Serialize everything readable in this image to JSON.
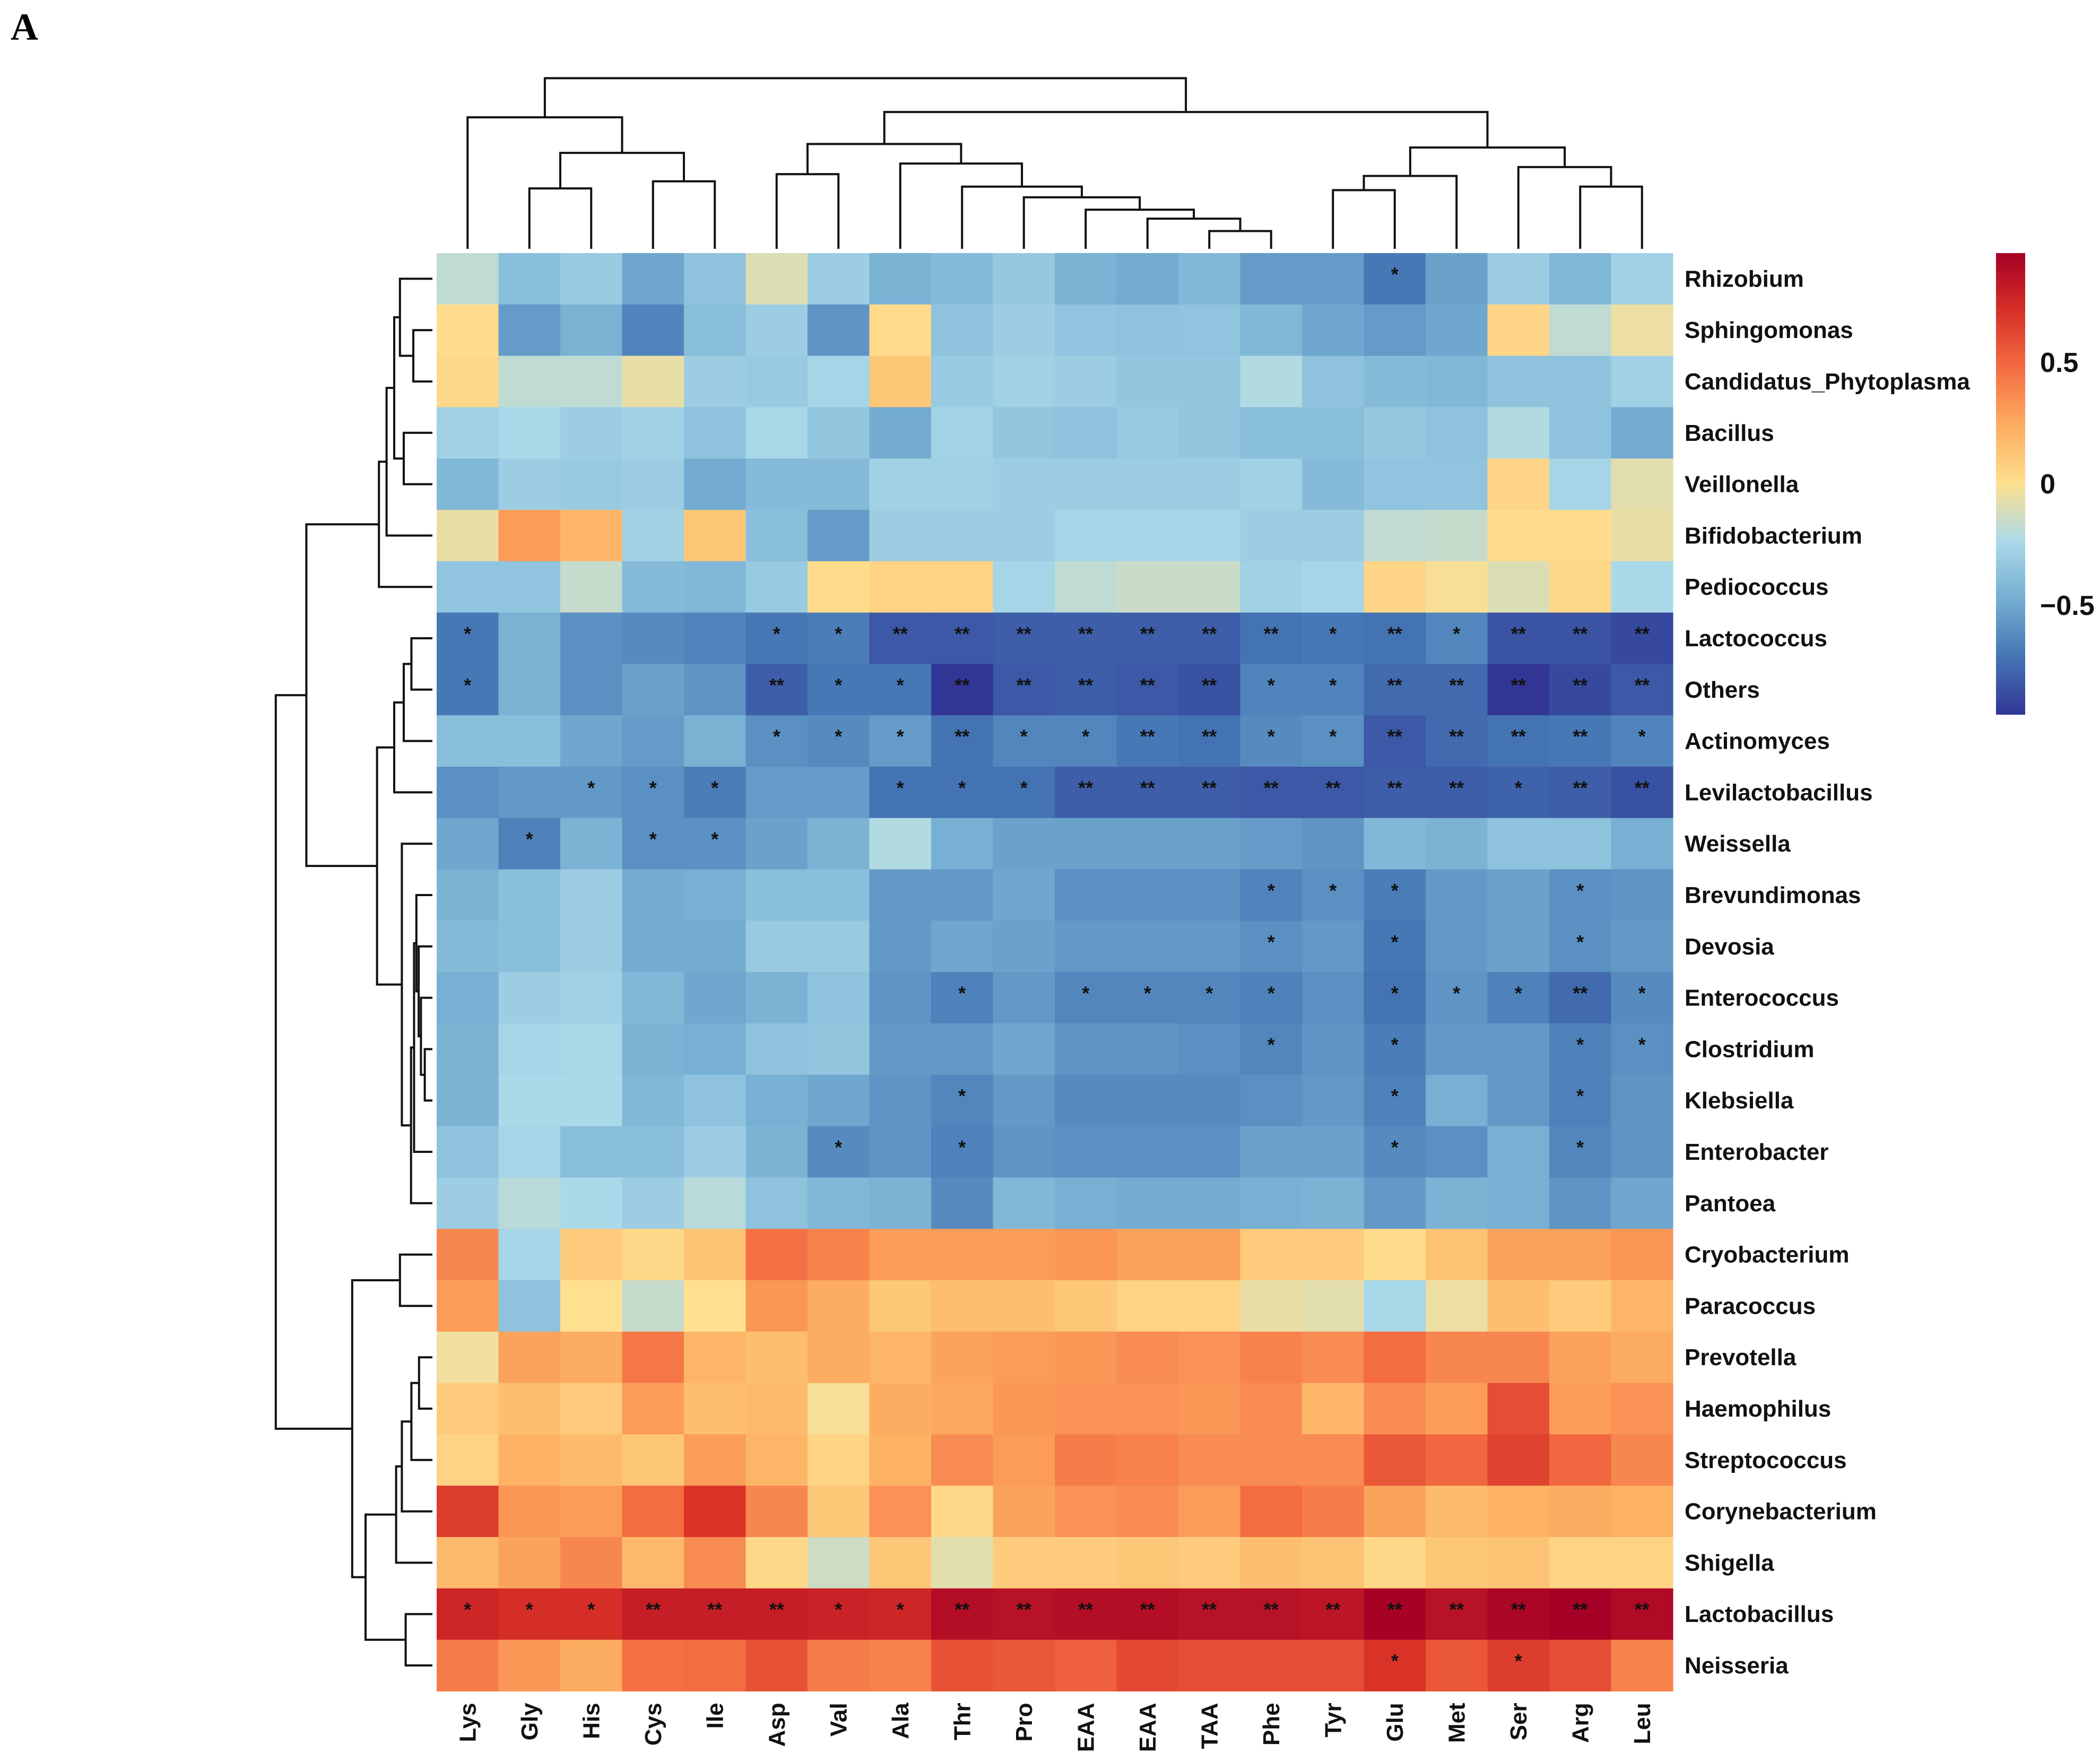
{
  "panel_label": "A",
  "chart_data": {
    "type": "heatmap",
    "title": "",
    "columns": [
      "Lys",
      "Gly",
      "His",
      "Cys",
      "Ile",
      "Asp",
      "Val",
      "Ala",
      "Thr",
      "Pro",
      "EAA",
      "EAA",
      "TAA",
      "Phe",
      "Tyr",
      "Glu",
      "Met",
      "Ser",
      "Arg",
      "Leu"
    ],
    "rows": [
      "Rhizobium",
      "Sphingomonas",
      "Candidatus_Phytoplasma",
      "Bacillus",
      "Veillonella",
      "Bifidobacterium",
      "Pediococcus",
      "Lactococcus",
      "Others",
      "Actinomyces",
      "Levilactobacillus",
      "Weissella",
      "Brevundimonas",
      "Devosia",
      "Enterococcus",
      "Clostridium",
      "Klebsiella",
      "Enterobacter",
      "Pantoea",
      "Cryobacterium",
      "Paracoccus",
      "Prevotella",
      "Haemophilus",
      "Streptococcus",
      "Corynebacterium",
      "Shigella",
      "Lactobacillus",
      "Neisseria"
    ],
    "values": [
      [
        -0.18,
        -0.38,
        -0.32,
        -0.5,
        -0.36,
        -0.1,
        -0.3,
        -0.45,
        -0.4,
        -0.33,
        -0.45,
        -0.48,
        -0.42,
        -0.55,
        -0.55,
        -0.7,
        -0.52,
        -0.3,
        -0.42,
        -0.28
      ],
      [
        0.02,
        -0.55,
        -0.45,
        -0.65,
        -0.38,
        -0.3,
        -0.58,
        0.03,
        -0.36,
        -0.3,
        -0.35,
        -0.36,
        -0.35,
        -0.42,
        -0.5,
        -0.55,
        -0.5,
        0.05,
        -0.18,
        -0.05
      ],
      [
        0.04,
        -0.18,
        -0.18,
        -0.06,
        -0.3,
        -0.32,
        -0.26,
        0.12,
        -0.32,
        -0.28,
        -0.3,
        -0.34,
        -0.34,
        -0.22,
        -0.36,
        -0.4,
        -0.42,
        -0.36,
        -0.36,
        -0.28
      ],
      [
        -0.28,
        -0.24,
        -0.3,
        -0.28,
        -0.36,
        -0.25,
        -0.34,
        -0.48,
        -0.27,
        -0.34,
        -0.36,
        -0.32,
        -0.34,
        -0.38,
        -0.38,
        -0.33,
        -0.36,
        -0.22,
        -0.36,
        -0.48
      ],
      [
        -0.42,
        -0.3,
        -0.32,
        -0.3,
        -0.48,
        -0.4,
        -0.4,
        -0.28,
        -0.28,
        -0.3,
        -0.3,
        -0.3,
        -0.3,
        -0.28,
        -0.4,
        -0.35,
        -0.35,
        0.05,
        -0.26,
        -0.08
      ],
      [
        -0.06,
        0.3,
        0.2,
        -0.28,
        0.12,
        -0.38,
        -0.55,
        -0.3,
        -0.3,
        -0.3,
        -0.26,
        -0.26,
        -0.26,
        -0.3,
        -0.3,
        -0.18,
        -0.16,
        0.02,
        0.02,
        -0.06
      ],
      [
        -0.35,
        -0.35,
        -0.16,
        -0.4,
        -0.42,
        -0.32,
        0.02,
        0.06,
        0.06,
        -0.26,
        -0.18,
        -0.15,
        -0.15,
        -0.28,
        -0.26,
        0.05,
        -0.02,
        -0.1,
        0.04,
        -0.24
      ],
      [
        -0.7,
        -0.45,
        -0.6,
        -0.62,
        -0.65,
        -0.7,
        -0.68,
        -0.82,
        -0.82,
        -0.8,
        -0.8,
        -0.8,
        -0.8,
        -0.72,
        -0.7,
        -0.72,
        -0.64,
        -0.84,
        -0.84,
        -0.88
      ],
      [
        -0.7,
        -0.45,
        -0.6,
        -0.52,
        -0.58,
        -0.8,
        -0.7,
        -0.7,
        -0.95,
        -0.82,
        -0.8,
        -0.82,
        -0.85,
        -0.65,
        -0.65,
        -0.75,
        -0.75,
        -0.95,
        -0.88,
        -0.82
      ],
      [
        -0.38,
        -0.38,
        -0.5,
        -0.55,
        -0.45,
        -0.6,
        -0.62,
        -0.55,
        -0.72,
        -0.64,
        -0.64,
        -0.7,
        -0.72,
        -0.62,
        -0.6,
        -0.82,
        -0.75,
        -0.72,
        -0.7,
        -0.65
      ],
      [
        -0.6,
        -0.56,
        -0.56,
        -0.6,
        -0.68,
        -0.55,
        -0.55,
        -0.72,
        -0.72,
        -0.72,
        -0.8,
        -0.8,
        -0.8,
        -0.82,
        -0.82,
        -0.8,
        -0.8,
        -0.78,
        -0.8,
        -0.85
      ],
      [
        -0.5,
        -0.66,
        -0.44,
        -0.6,
        -0.6,
        -0.52,
        -0.44,
        -0.22,
        -0.46,
        -0.52,
        -0.52,
        -0.52,
        -0.52,
        -0.55,
        -0.58,
        -0.42,
        -0.44,
        -0.36,
        -0.36,
        -0.46
      ],
      [
        -0.44,
        -0.38,
        -0.3,
        -0.48,
        -0.46,
        -0.38,
        -0.38,
        -0.56,
        -0.56,
        -0.5,
        -0.6,
        -0.6,
        -0.6,
        -0.65,
        -0.6,
        -0.68,
        -0.56,
        -0.52,
        -0.6,
        -0.58
      ],
      [
        -0.4,
        -0.38,
        -0.3,
        -0.48,
        -0.48,
        -0.32,
        -0.32,
        -0.56,
        -0.5,
        -0.52,
        -0.56,
        -0.56,
        -0.56,
        -0.6,
        -0.56,
        -0.7,
        -0.56,
        -0.52,
        -0.6,
        -0.56
      ],
      [
        -0.46,
        -0.3,
        -0.28,
        -0.42,
        -0.5,
        -0.44,
        -0.36,
        -0.58,
        -0.66,
        -0.56,
        -0.64,
        -0.64,
        -0.64,
        -0.66,
        -0.6,
        -0.72,
        -0.58,
        -0.66,
        -0.75,
        -0.62
      ],
      [
        -0.44,
        -0.26,
        -0.25,
        -0.44,
        -0.46,
        -0.36,
        -0.34,
        -0.56,
        -0.56,
        -0.5,
        -0.58,
        -0.58,
        -0.6,
        -0.64,
        -0.58,
        -0.68,
        -0.56,
        -0.56,
        -0.66,
        -0.6
      ],
      [
        -0.44,
        -0.24,
        -0.24,
        -0.42,
        -0.36,
        -0.46,
        -0.5,
        -0.58,
        -0.64,
        -0.56,
        -0.62,
        -0.62,
        -0.62,
        -0.6,
        -0.56,
        -0.66,
        -0.46,
        -0.56,
        -0.66,
        -0.58
      ],
      [
        -0.36,
        -0.26,
        -0.38,
        -0.38,
        -0.3,
        -0.44,
        -0.62,
        -0.58,
        -0.66,
        -0.58,
        -0.6,
        -0.6,
        -0.6,
        -0.52,
        -0.52,
        -0.62,
        -0.6,
        -0.46,
        -0.64,
        -0.58
      ],
      [
        -0.3,
        -0.2,
        -0.24,
        -0.3,
        -0.2,
        -0.36,
        -0.42,
        -0.44,
        -0.62,
        -0.42,
        -0.46,
        -0.48,
        -0.48,
        -0.46,
        -0.44,
        -0.56,
        -0.44,
        -0.46,
        -0.58,
        -0.5
      ],
      [
        0.38,
        -0.26,
        0.1,
        0.04,
        0.14,
        0.46,
        0.4,
        0.3,
        0.3,
        0.3,
        0.32,
        0.28,
        0.28,
        0.1,
        0.1,
        0.02,
        0.14,
        0.28,
        0.28,
        0.32
      ],
      [
        0.3,
        -0.36,
        0.0,
        -0.16,
        0.0,
        0.32,
        0.24,
        0.12,
        0.16,
        0.16,
        0.12,
        0.06,
        0.06,
        -0.06,
        -0.08,
        -0.25,
        -0.05,
        0.16,
        0.1,
        0.2
      ],
      [
        -0.04,
        0.28,
        0.24,
        0.44,
        0.2,
        0.16,
        0.24,
        0.2,
        0.28,
        0.3,
        0.32,
        0.36,
        0.34,
        0.4,
        0.36,
        0.48,
        0.38,
        0.38,
        0.28,
        0.24
      ],
      [
        0.1,
        0.16,
        0.1,
        0.3,
        0.16,
        0.18,
        -0.02,
        0.24,
        0.26,
        0.32,
        0.34,
        0.34,
        0.32,
        0.36,
        0.2,
        0.36,
        0.3,
        0.6,
        0.3,
        0.34
      ],
      [
        0.06,
        0.22,
        0.18,
        0.12,
        0.3,
        0.2,
        0.06,
        0.22,
        0.36,
        0.3,
        0.42,
        0.4,
        0.36,
        0.36,
        0.36,
        0.56,
        0.5,
        0.64,
        0.5,
        0.38
      ],
      [
        0.66,
        0.32,
        0.3,
        0.48,
        0.7,
        0.38,
        0.12,
        0.34,
        0.04,
        0.28,
        0.34,
        0.36,
        0.3,
        0.48,
        0.42,
        0.28,
        0.18,
        0.22,
        0.24,
        0.22
      ],
      [
        0.18,
        0.28,
        0.38,
        0.18,
        0.36,
        0.04,
        -0.14,
        0.12,
        -0.08,
        0.1,
        0.1,
        0.12,
        0.1,
        0.16,
        0.14,
        0.04,
        0.12,
        0.14,
        0.06,
        0.06
      ],
      [
        0.76,
        0.72,
        0.72,
        0.8,
        0.8,
        0.8,
        0.78,
        0.76,
        0.88,
        0.86,
        0.88,
        0.88,
        0.86,
        0.86,
        0.84,
        0.94,
        0.86,
        0.92,
        0.95,
        0.9
      ],
      [
        0.42,
        0.32,
        0.24,
        0.46,
        0.48,
        0.58,
        0.42,
        0.4,
        0.58,
        0.56,
        0.52,
        0.62,
        0.6,
        0.6,
        0.6,
        0.7,
        0.56,
        0.66,
        0.6,
        0.4
      ]
    ],
    "significance": [
      [
        "",
        "",
        "",
        "",
        "",
        "",
        "",
        "",
        "",
        "",
        "",
        "",
        "",
        "",
        "",
        "*",
        "",
        "",
        "",
        ""
      ],
      [
        "",
        "",
        "",
        "",
        "",
        "",
        "",
        "",
        "",
        "",
        "",
        "",
        "",
        "",
        "",
        "",
        "",
        "",
        "",
        ""
      ],
      [
        "",
        "",
        "",
        "",
        "",
        "",
        "",
        "",
        "",
        "",
        "",
        "",
        "",
        "",
        "",
        "",
        "",
        "",
        "",
        ""
      ],
      [
        "",
        "",
        "",
        "",
        "",
        "",
        "",
        "",
        "",
        "",
        "",
        "",
        "",
        "",
        "",
        "",
        "",
        "",
        "",
        ""
      ],
      [
        "",
        "",
        "",
        "",
        "",
        "",
        "",
        "",
        "",
        "",
        "",
        "",
        "",
        "",
        "",
        "",
        "",
        "",
        "",
        ""
      ],
      [
        "",
        "",
        "",
        "",
        "",
        "",
        "",
        "",
        "",
        "",
        "",
        "",
        "",
        "",
        "",
        "",
        "",
        "",
        "",
        ""
      ],
      [
        "",
        "",
        "",
        "",
        "",
        "",
        "",
        "",
        "",
        "",
        "",
        "",
        "",
        "",
        "",
        "",
        "",
        "",
        "",
        ""
      ],
      [
        "*",
        "",
        "",
        "",
        "",
        "*",
        "*",
        "**",
        "**",
        "**",
        "**",
        "**",
        "**",
        "**",
        "*",
        "**",
        "*",
        "**",
        "**",
        "**"
      ],
      [
        "*",
        "",
        "",
        "",
        "",
        "**",
        "*",
        "*",
        "**",
        "**",
        "**",
        "**",
        "**",
        "*",
        "*",
        "**",
        "**",
        "**",
        "**",
        "**"
      ],
      [
        "",
        "",
        "",
        "",
        "",
        "*",
        "*",
        "*",
        "**",
        "*",
        "*",
        "**",
        "**",
        "*",
        "*",
        "**",
        "**",
        "**",
        "**",
        "*"
      ],
      [
        "",
        "",
        "*",
        "*",
        "*",
        "",
        "",
        "*",
        "*",
        "*",
        "**",
        "**",
        "**",
        "**",
        "**",
        "**",
        "**",
        "*",
        "**",
        "**"
      ],
      [
        "",
        "*",
        "",
        "*",
        "*",
        "",
        "",
        "",
        "",
        "",
        "",
        "",
        "",
        "",
        "",
        "",
        "",
        "",
        "",
        ""
      ],
      [
        "",
        "",
        "",
        "",
        "",
        "",
        "",
        "",
        "",
        "",
        "",
        "",
        "",
        "*",
        "*",
        "*",
        "",
        "",
        "*",
        ""
      ],
      [
        "",
        "",
        "",
        "",
        "",
        "",
        "",
        "",
        "",
        "",
        "",
        "",
        "",
        "*",
        "",
        "*",
        "",
        "",
        "*",
        ""
      ],
      [
        "",
        "",
        "",
        "",
        "",
        "",
        "",
        "",
        "*",
        "",
        "*",
        "*",
        "*",
        "*",
        "",
        "*",
        "*",
        "*",
        "**",
        "*"
      ],
      [
        "",
        "",
        "",
        "",
        "",
        "",
        "",
        "",
        "",
        "",
        "",
        "",
        "",
        "*",
        "",
        "*",
        "",
        "",
        "*",
        "*"
      ],
      [
        "",
        "",
        "",
        "",
        "",
        "",
        "",
        "",
        "*",
        "",
        "",
        "",
        "",
        "",
        "",
        "*",
        "",
        "",
        "*",
        ""
      ],
      [
        "",
        "",
        "",
        "",
        "",
        "",
        "*",
        "",
        "*",
        "",
        "",
        "",
        "",
        "",
        "",
        "*",
        "",
        "",
        "*",
        ""
      ],
      [
        "",
        "",
        "",
        "",
        "",
        "",
        "",
        "",
        "",
        "",
        "",
        "",
        "",
        "",
        "",
        "",
        "",
        "",
        "",
        ""
      ],
      [
        "",
        "",
        "",
        "",
        "",
        "",
        "",
        "",
        "",
        "",
        "",
        "",
        "",
        "",
        "",
        "",
        "",
        "",
        "",
        ""
      ],
      [
        "",
        "",
        "",
        "",
        "",
        "",
        "",
        "",
        "",
        "",
        "",
        "",
        "",
        "",
        "",
        "",
        "",
        "",
        "",
        ""
      ],
      [
        "",
        "",
        "",
        "",
        "",
        "",
        "",
        "",
        "",
        "",
        "",
        "",
        "",
        "",
        "",
        "",
        "",
        "",
        "",
        ""
      ],
      [
        "",
        "",
        "",
        "",
        "",
        "",
        "",
        "",
        "",
        "",
        "",
        "",
        "",
        "",
        "",
        "",
        "",
        "",
        "",
        ""
      ],
      [
        "",
        "",
        "",
        "",
        "",
        "",
        "",
        "",
        "",
        "",
        "",
        "",
        "",
        "",
        "",
        "",
        "",
        "",
        "",
        ""
      ],
      [
        "",
        "",
        "",
        "",
        "",
        "",
        "",
        "",
        "",
        "",
        "",
        "",
        "",
        "",
        "",
        "",
        "",
        "",
        "",
        ""
      ],
      [
        "",
        "",
        "",
        "",
        "",
        "",
        "",
        "",
        "",
        "",
        "",
        "",
        "",
        "",
        "",
        "",
        "",
        "",
        "",
        ""
      ],
      [
        "*",
        "*",
        "*",
        "**",
        "**",
        "**",
        "*",
        "*",
        "**",
        "**",
        "**",
        "**",
        "**",
        "**",
        "**",
        "**",
        "**",
        "**",
        "**",
        "**"
      ],
      [
        "",
        "",
        "",
        "",
        "",
        "",
        "",
        "",
        "",
        "",
        "",
        "",
        "",
        "",
        "",
        "*",
        "",
        "*",
        "",
        ""
      ]
    ],
    "colorbar": {
      "min": -0.95,
      "max": 0.95,
      "ticks": [
        0.5,
        0,
        -0.5
      ],
      "tick_labels": [
        "0.5",
        "0",
        "−0.5"
      ],
      "colors": [
        "#313695",
        "#4575b4",
        "#74add1",
        "#abd9e9",
        "#fee090",
        "#fdae61",
        "#f46d43",
        "#d73027",
        "#a50026"
      ]
    }
  }
}
